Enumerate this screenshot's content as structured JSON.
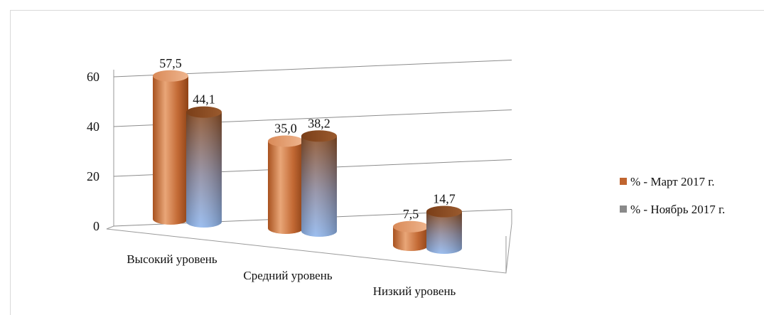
{
  "chart_data": {
    "type": "bar",
    "title": "",
    "xlabel": "",
    "ylabel": "",
    "categories": [
      "Высокий уровень",
      "Средний уровень",
      "Низкий уровень"
    ],
    "series": [
      {
        "name": "% - Март 2017 г.",
        "values": [
          57.5,
          35.0,
          7.5
        ],
        "labels": [
          "57,5",
          "35,0",
          "7,5"
        ],
        "color": "#c0652f"
      },
      {
        "name": "% - Ноябрь 2017 г.",
        "values": [
          44.1,
          38.2,
          14.7
        ],
        "labels": [
          "44,1",
          "38,2",
          "14,7"
        ],
        "color": "#8b5a3a"
      }
    ],
    "yticks": [
      0,
      20,
      40,
      60
    ],
    "ylim": [
      0,
      60
    ],
    "grid": true,
    "legend": "right",
    "style": "3d-cylinder"
  }
}
